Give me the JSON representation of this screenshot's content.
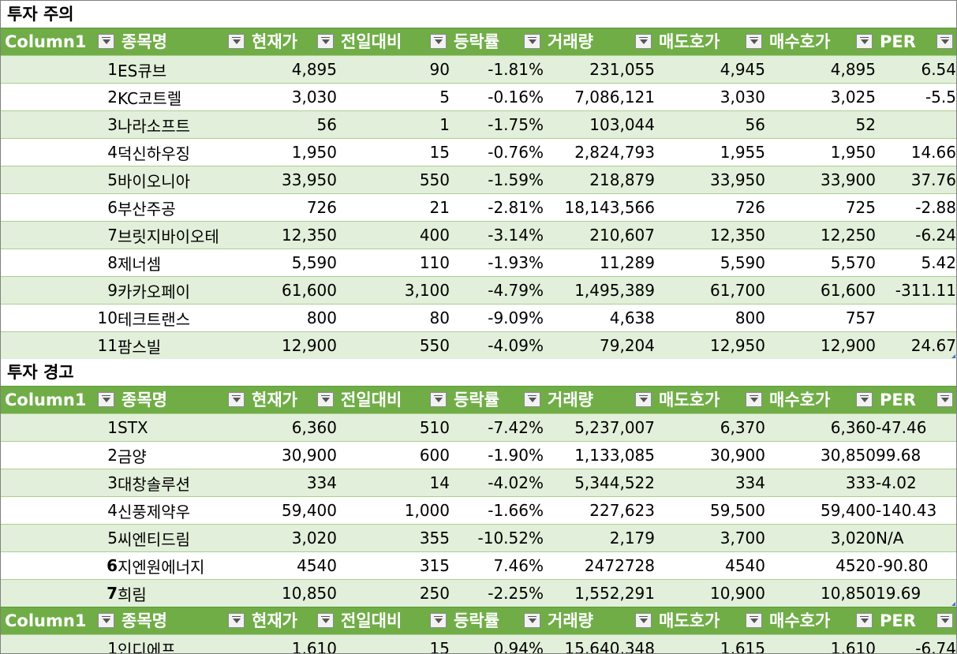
{
  "headers": [
    "Column1",
    "종목명",
    "현재가",
    "전일대비",
    "등락률",
    "거래량",
    "매도호가",
    "매수호가",
    "PER"
  ],
  "sections": [
    {
      "title": "투자 주의",
      "rows": [
        [
          "1",
          "ES큐브",
          "4,895",
          "90",
          "-1.81%",
          "231,055",
          "4,945",
          "4,895",
          "6.54"
        ],
        [
          "2",
          "KC코트렐",
          "3,030",
          "5",
          "-0.16%",
          "7,086,121",
          "3,030",
          "3,025",
          "-5.5"
        ],
        [
          "3",
          "나라소프트",
          "56",
          "1",
          "-1.75%",
          "103,044",
          "56",
          "52",
          ""
        ],
        [
          "4",
          "덕신하우징",
          "1,950",
          "15",
          "-0.76%",
          "2,824,793",
          "1,955",
          "1,950",
          "14.66"
        ],
        [
          "5",
          "바이오니아",
          "33,950",
          "550",
          "-1.59%",
          "218,879",
          "33,950",
          "33,900",
          "37.76"
        ],
        [
          "6",
          "부산주공",
          "726",
          "21",
          "-2.81%",
          "18,143,566",
          "726",
          "725",
          "-2.88"
        ],
        [
          "7",
          "브릿지바이오테",
          "12,350",
          "400",
          "-3.14%",
          "210,607",
          "12,350",
          "12,250",
          "-6.24"
        ],
        [
          "8",
          "제너셈",
          "5,590",
          "110",
          "-1.93%",
          "11,289",
          "5,590",
          "5,570",
          "5.42"
        ],
        [
          "9",
          "카카오페이",
          "61,600",
          "3,100",
          "-4.79%",
          "1,495,389",
          "61,700",
          "61,600",
          "-311.11"
        ],
        [
          "10",
          "테크트랜스",
          "800",
          "80",
          "-9.09%",
          "4,638",
          "800",
          "757",
          ""
        ],
        [
          "11",
          "팜스빌",
          "12,900",
          "550",
          "-4.09%",
          "79,204",
          "12,950",
          "12,900",
          "24.67"
        ]
      ]
    },
    {
      "title": "투자 경고",
      "rows": [
        [
          "1",
          "STX",
          "6,360",
          "510",
          "-7.42%",
          "5,237,007",
          "6,370",
          "6,360",
          "-47.46"
        ],
        [
          "2",
          "금양",
          "30,900",
          "600",
          "-1.90%",
          "1,133,085",
          "30,900",
          "30,850",
          "99.68"
        ],
        [
          "3",
          "대창솔루션",
          "334",
          "14",
          "-4.02%",
          "5,344,522",
          "334",
          "333",
          "-4.02"
        ],
        [
          "4",
          "신풍제약우",
          "59,400",
          "1,000",
          "-1.66%",
          "227,623",
          "59,500",
          "59,400",
          "-140.43"
        ],
        [
          "5",
          "씨엔티드림",
          "3,020",
          "355",
          "-10.52%",
          "2,179",
          "3,700",
          "3,020",
          "N/A"
        ],
        [
          "6",
          "지엔원에너지",
          "4540",
          "315",
          "7.46%",
          "2472728",
          "4540",
          "4520",
          "-90.80"
        ],
        [
          "7",
          "희림",
          "10,850",
          "250",
          "-2.25%",
          "1,552,291",
          "10,900",
          "10,850",
          "19.69"
        ]
      ]
    },
    {
      "title": "",
      "rows": [
        [
          "1",
          "인디에프",
          "1,610",
          "15",
          "0.94%",
          "15,640,348",
          "1,615",
          "1,610",
          "-6.74"
        ]
      ]
    }
  ]
}
